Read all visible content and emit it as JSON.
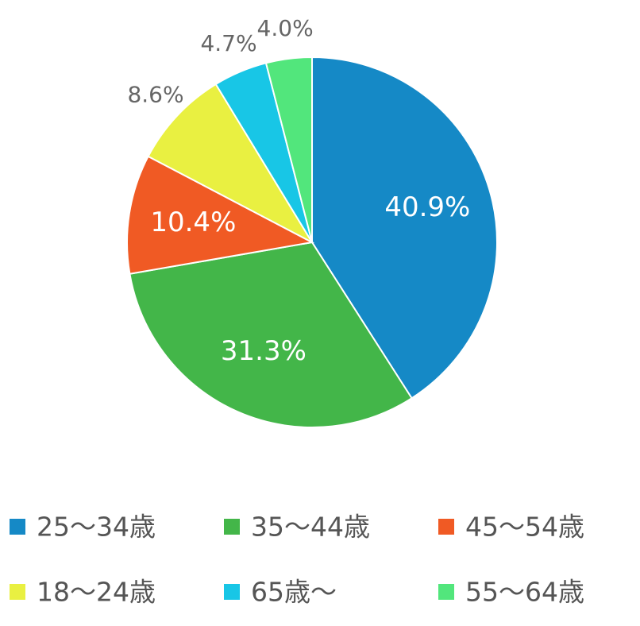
{
  "chart_data": {
    "type": "pie",
    "categories": [
      "25～34歳",
      "35～44歳",
      "45～54歳",
      "18～24歳",
      "65歳～",
      "55～64歳"
    ],
    "values": [
      40.9,
      31.3,
      10.4,
      8.6,
      4.7,
      4.0
    ],
    "value_labels": [
      "40.9%",
      "31.3%",
      "10.4%",
      "8.6%",
      "4.7%",
      "4.0%"
    ],
    "colors": [
      "#1589c6",
      "#43b649",
      "#f05a24",
      "#e9f041",
      "#18c6e6",
      "#52e67c"
    ]
  }
}
